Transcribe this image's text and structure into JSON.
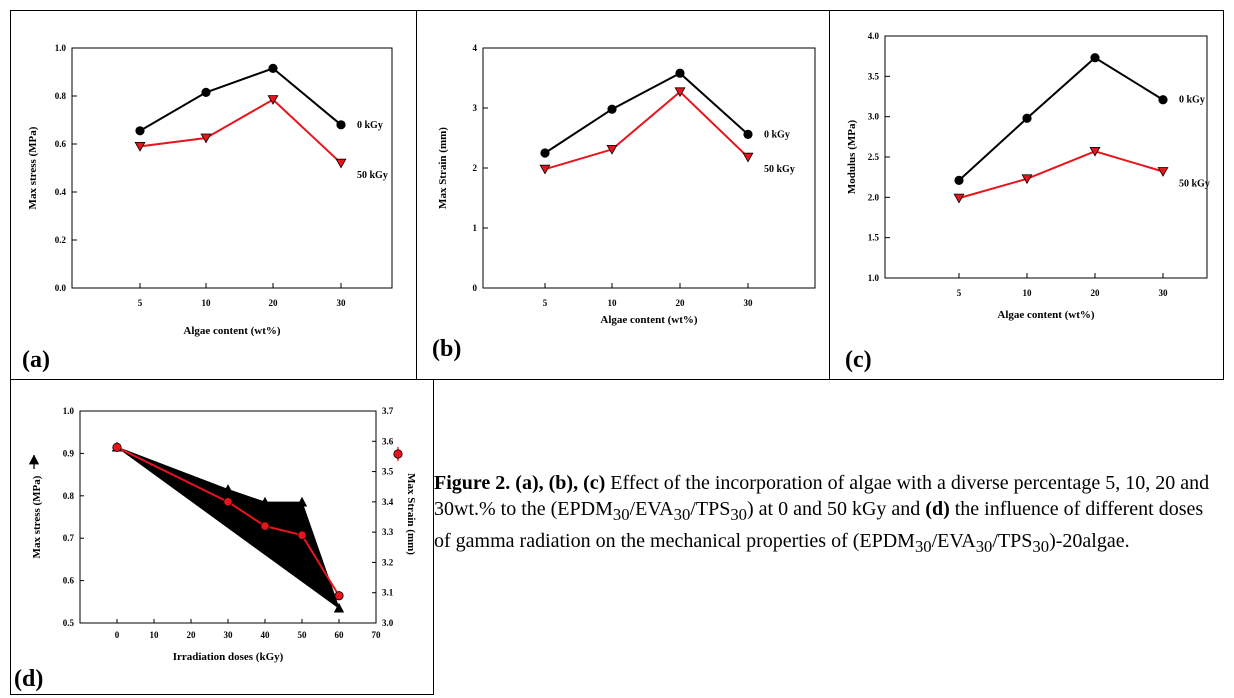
{
  "caption": {
    "lead": "Figure 2.",
    "pa": "(a),",
    "pb": "(b),",
    "pc": "(c)",
    "t1": " Effect of the incorporation of algae with a diverse percentage 5, 10, 20 and 30wt.% to the (EPDM",
    "s1": "30",
    "t2": "/EVA",
    "s2": "30",
    "t3": "/TPS",
    "s3": "30",
    "t4": ") at 0 and 50 kGy and ",
    "pd": "(d)",
    "t5": " the influence of different doses of gamma radiation on the mechanical properties of (EPDM",
    "s4": "30",
    "t6": "/EVA",
    "s5": "30",
    "t7": "/TPS",
    "s6": "30",
    "t8": ")-20algae."
  },
  "chart_data": [
    {
      "panel": "(a)",
      "type": "line",
      "categories": [
        "5",
        "10",
        "20",
        "30"
      ],
      "xlabel": "Algae content (wt%)",
      "ylabel": "Max stress (MPa)",
      "ylim": [
        0.0,
        1.0
      ],
      "yticks": [
        "0.0",
        "0.2",
        "0.4",
        "0.6",
        "0.8",
        "1.0"
      ],
      "grid": false,
      "series": [
        {
          "name": "0 kGy",
          "color": "#000000",
          "marker": "circle",
          "values": [
            0.655,
            0.815,
            0.915,
            0.68
          ]
        },
        {
          "name": "50 kGy",
          "color": "#e8141c",
          "marker": "triangle-down",
          "values": [
            0.59,
            0.625,
            0.785,
            0.52
          ]
        }
      ]
    },
    {
      "panel": "(b)",
      "type": "line",
      "categories": [
        "5",
        "10",
        "20",
        "30"
      ],
      "xlabel": "Algae content (wt%)",
      "ylabel": "Max Strain (mm)",
      "ylim": [
        0,
        4
      ],
      "yticks": [
        "0",
        "1",
        "2",
        "3",
        "4"
      ],
      "grid": false,
      "series": [
        {
          "name": "0 kGy",
          "color": "#000000",
          "marker": "circle",
          "values": [
            2.25,
            2.98,
            3.58,
            2.56
          ]
        },
        {
          "name": "50 kGy",
          "color": "#e8141c",
          "marker": "triangle-down",
          "values": [
            1.98,
            2.31,
            3.27,
            2.18
          ]
        }
      ]
    },
    {
      "panel": "(c)",
      "type": "line",
      "categories": [
        "5",
        "10",
        "20",
        "30"
      ],
      "xlabel": "Algae content (wt%)",
      "ylabel": "Modulus (MPa)",
      "ylim": [
        1.0,
        4.0
      ],
      "yticks": [
        "1.0",
        "1.5",
        "2.0",
        "2.5",
        "3.0",
        "3.5",
        "4.0"
      ],
      "grid": false,
      "series": [
        {
          "name": "0 kGy",
          "color": "#000000",
          "marker": "circle",
          "values": [
            2.21,
            2.98,
            3.73,
            3.21
          ]
        },
        {
          "name": "50 kGy",
          "color": "#e8141c",
          "marker": "triangle-down",
          "values": [
            1.99,
            2.23,
            2.57,
            2.32
          ]
        }
      ]
    },
    {
      "panel": "(d)",
      "type": "line",
      "xlabel": "Irradiation doses (kGy)",
      "xlim": [
        -10,
        70
      ],
      "xticks": [
        "0",
        "10",
        "20",
        "30",
        "40",
        "50",
        "60",
        "70"
      ],
      "ylabel": "Max stress (MPa)",
      "ylim": [
        0.5,
        1.0
      ],
      "yticks": [
        "0.5",
        "0.6",
        "0.7",
        "0.8",
        "0.9",
        "1.0"
      ],
      "y2label": "Max Strain (mm)",
      "y2lim": [
        3.0,
        3.7
      ],
      "y2ticks": [
        "3.0",
        "3.1",
        "3.2",
        "3.3",
        "3.4",
        "3.5",
        "3.6",
        "3.7"
      ],
      "grid": false,
      "series": [
        {
          "axis": "left",
          "color": "#000000",
          "marker": "triangle-up",
          "filled": true,
          "x": [
            0,
            30,
            40,
            50,
            60
          ],
          "values": [
            0.915,
            0.815,
            0.785,
            0.785,
            0.535
          ]
        },
        {
          "axis": "right",
          "color": "#e8141c",
          "marker": "circle",
          "x": [
            0,
            30,
            40,
            50,
            60
          ],
          "values": [
            3.58,
            3.4,
            3.32,
            3.29,
            3.09
          ]
        }
      ]
    }
  ]
}
